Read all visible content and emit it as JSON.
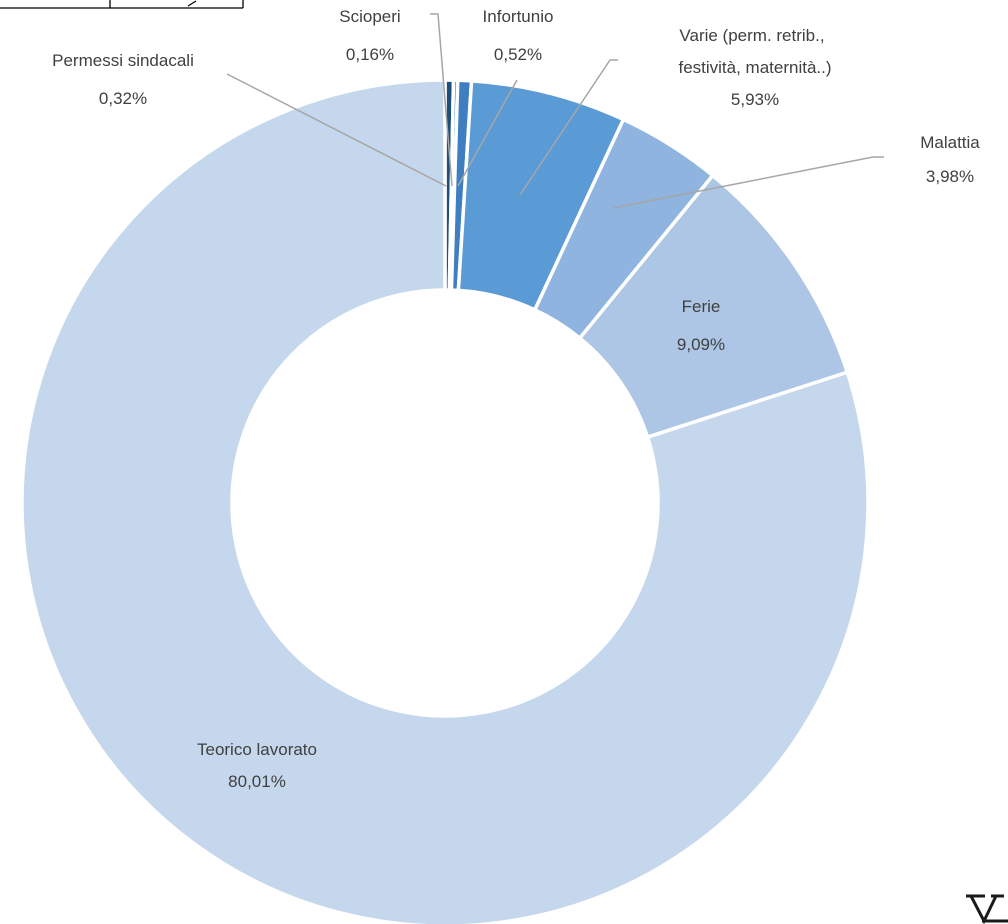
{
  "chart_data": {
    "type": "donut",
    "title": "",
    "order": "clockwise from 12 o'clock",
    "slices": [
      {
        "name": "Permessi sindacali",
        "value": 0.32,
        "value_label": "0,32%",
        "color": "#1f4e79"
      },
      {
        "name": "Scioperi",
        "value": 0.16,
        "value_label": "0,16%",
        "color": "#2e75b6"
      },
      {
        "name": "Infortunio",
        "value": 0.52,
        "value_label": "0,52%",
        "color": "#3f7fc1"
      },
      {
        "name": "Varie (perm. retrib., festività, maternità..)",
        "label_lines": [
          "Varie (perm. retrib.,",
          "festività, maternità..)"
        ],
        "value": 5.93,
        "value_label": "5,93%",
        "color": "#5b9bd5"
      },
      {
        "name": "Malattia",
        "value": 3.98,
        "value_label": "3,98%",
        "color": "#8eb4df"
      },
      {
        "name": "Ferie",
        "value": 9.09,
        "value_label": "9,09%",
        "color": "#adc6e5"
      },
      {
        "name": "Teorico lavorato",
        "value": 80.01,
        "value_label": "80,01%",
        "color": "#c5d7ec"
      }
    ],
    "leader_line_color": "#a6a6a6",
    "separator_color": "#ffffff",
    "legend": "none"
  }
}
